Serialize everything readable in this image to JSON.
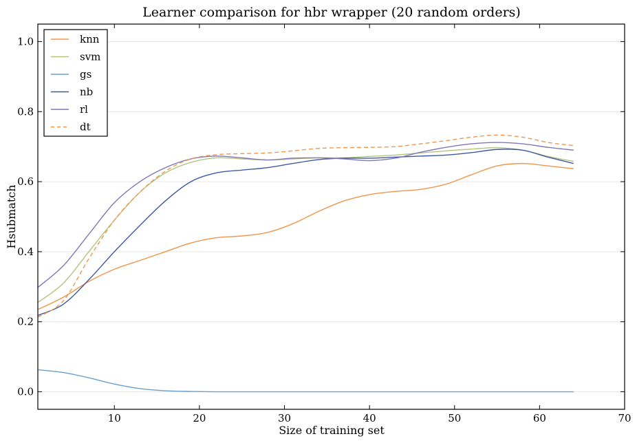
{
  "chart_data": {
    "type": "line",
    "title": "Learner comparison for hbr wrapper (20 random orders)",
    "xlabel": "Size of training set",
    "ylabel": "Hsubmatch",
    "xlim": [
      1,
      70
    ],
    "ylim": [
      -0.05,
      1.05
    ],
    "xticks": [
      10,
      20,
      30,
      40,
      50,
      60,
      70
    ],
    "yticks": [
      0.0,
      0.2,
      0.4,
      0.6,
      0.8,
      1.0
    ],
    "xtick_labels": [
      "10",
      "20",
      "30",
      "40",
      "50",
      "60",
      "70"
    ],
    "ytick_labels": [
      "0.0",
      "0.2",
      "0.4",
      "0.6",
      "0.8",
      "1.0"
    ],
    "grid": "horizontal",
    "legend_position": "top-left",
    "x": [
      1,
      4,
      7,
      10,
      13,
      16,
      19,
      22,
      25,
      28,
      31,
      34,
      37,
      40,
      43,
      46,
      49,
      52,
      55,
      58,
      61,
      64
    ],
    "series": [
      {
        "name": "knn",
        "color": "#f0954a",
        "dash": "solid",
        "values": [
          0.235,
          0.27,
          0.315,
          0.35,
          0.375,
          0.4,
          0.425,
          0.44,
          0.445,
          0.455,
          0.48,
          0.515,
          0.545,
          0.563,
          0.572,
          0.578,
          0.593,
          0.62,
          0.645,
          0.652,
          0.645,
          0.637
        ]
      },
      {
        "name": "svm",
        "color": "#b3c37d",
        "dash": "solid",
        "values": [
          0.255,
          0.31,
          0.4,
          0.49,
          0.57,
          0.625,
          0.655,
          0.668,
          0.665,
          0.662,
          0.665,
          0.668,
          0.668,
          0.672,
          0.676,
          0.682,
          0.688,
          0.693,
          0.697,
          0.69,
          0.672,
          0.658
        ]
      },
      {
        "name": "gs",
        "color": "#6a9fca",
        "dash": "solid",
        "values": [
          0.063,
          0.055,
          0.04,
          0.022,
          0.009,
          0.003,
          0.001,
          0.0,
          0.0,
          0.0,
          0.0,
          0.0,
          0.0,
          0.0,
          0.0,
          0.0,
          0.0,
          0.0,
          0.0,
          0.0,
          0.0,
          0.0
        ]
      },
      {
        "name": "nb",
        "color": "#3e58a6",
        "dash": "solid",
        "values": [
          0.218,
          0.25,
          0.32,
          0.4,
          0.475,
          0.545,
          0.6,
          0.625,
          0.633,
          0.64,
          0.652,
          0.663,
          0.667,
          0.667,
          0.67,
          0.673,
          0.676,
          0.683,
          0.692,
          0.69,
          0.67,
          0.652
        ]
      },
      {
        "name": "rl",
        "color": "#8176b8",
        "dash": "solid",
        "values": [
          0.298,
          0.36,
          0.45,
          0.54,
          0.6,
          0.64,
          0.665,
          0.673,
          0.668,
          0.662,
          0.667,
          0.668,
          0.665,
          0.66,
          0.667,
          0.684,
          0.698,
          0.708,
          0.712,
          0.708,
          0.698,
          0.69
        ]
      },
      {
        "name": "dt",
        "color": "#f0954a",
        "dash": "dashed",
        "values": [
          0.213,
          0.26,
          0.38,
          0.49,
          0.57,
          0.63,
          0.665,
          0.677,
          0.68,
          0.682,
          0.688,
          0.695,
          0.697,
          0.698,
          0.7,
          0.708,
          0.717,
          0.727,
          0.733,
          0.727,
          0.712,
          0.703
        ]
      }
    ]
  }
}
